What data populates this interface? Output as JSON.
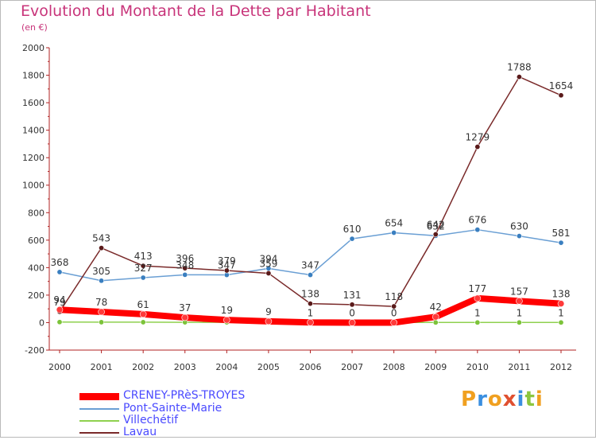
{
  "title": "Evolution du Montant de la Dette par Habitant",
  "subtitle": "(en €)",
  "logo": {
    "text": "Proxiti",
    "letters": [
      "P",
      "r",
      "o",
      "x",
      "i",
      "t",
      "i"
    ],
    "colors": [
      "#f0a020",
      "#3a8fe0",
      "#f0a020",
      "#e05030",
      "#3a8fe0",
      "#8cc63f",
      "#f0a020"
    ]
  },
  "chart_data": {
    "type": "line",
    "title": "Evolution du Montant de la Dette par Habitant",
    "subtitle": "(en €)",
    "xlabel": "",
    "ylabel": "",
    "x": [
      "2000",
      "2001",
      "2002",
      "2003",
      "2004",
      "2005",
      "2006",
      "2007",
      "2008",
      "2009",
      "2010",
      "2011",
      "2012"
    ],
    "ylim": [
      -200,
      2000
    ],
    "yticks": [
      -200,
      0,
      200,
      400,
      600,
      800,
      1000,
      1200,
      1400,
      1600,
      1800,
      2000
    ],
    "grid": false,
    "legend_position": "bottom-left",
    "series": [
      {
        "name": "CRENEY-PRèS-TROYES",
        "color": "#ff0000",
        "marker_color": "#ff3a3a",
        "line_width": 8,
        "values": [
          94,
          78,
          61,
          37,
          19,
          9,
          1,
          0,
          0,
          42,
          177,
          157,
          138
        ],
        "labels": [
          "94",
          "78",
          "61",
          "37",
          "19",
          "9",
          "1",
          "0",
          "0",
          "42",
          "177",
          "157",
          "138"
        ]
      },
      {
        "name": "Pont-Sainte-Marie",
        "color": "#6a9fd4",
        "marker_color": "#3a7fc0",
        "line_width": 1.5,
        "values": [
          368,
          305,
          327,
          348,
          347,
          394,
          347,
          610,
          654,
          632,
          676,
          630,
          581
        ],
        "labels": [
          "368",
          "305",
          "327",
          "348",
          "347",
          "394",
          "347",
          "610",
          "654",
          "632",
          "676",
          "630",
          "581"
        ]
      },
      {
        "name": "Villechétif",
        "color": "#8fd14f",
        "marker_color": "#7cc33a",
        "line_width": 1.5,
        "values": [
          4,
          3,
          3,
          2,
          2,
          1,
          1,
          1,
          1,
          1,
          1,
          1,
          1
        ],
        "labels": [
          "",
          "",
          "",
          "",
          "",
          "",
          "",
          "",
          "",
          "",
          "1",
          "1",
          "1"
        ]
      },
      {
        "name": "Lavau",
        "color": "#7a2a2a",
        "marker_color": "#5a1a1a",
        "line_width": 1.5,
        "values": [
          79,
          543,
          413,
          396,
          379,
          359,
          138,
          131,
          118,
          642,
          1279,
          1788,
          1654
        ],
        "labels": [
          "79",
          "543",
          "413",
          "396",
          "379",
          "359",
          "138",
          "131",
          "118",
          "642",
          "1279",
          "1788",
          "1654"
        ]
      }
    ]
  }
}
